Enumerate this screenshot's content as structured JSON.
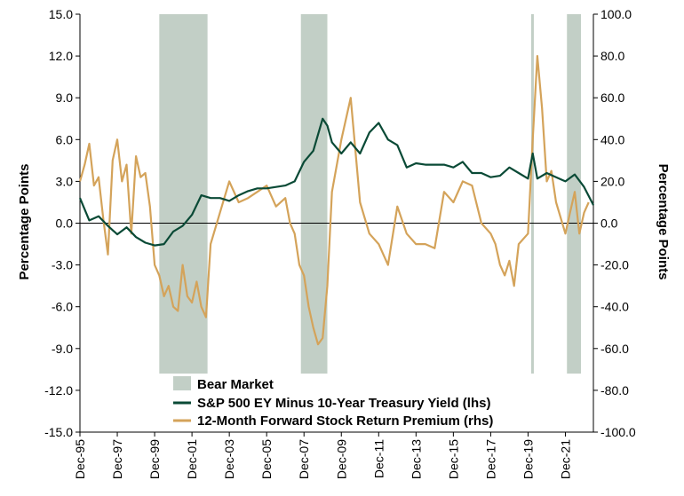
{
  "chart_data": {
    "type": "line",
    "ylabel_left": "Percentage Points",
    "ylabel_right": "Percentage Points",
    "y_left_range": [
      -15,
      15
    ],
    "y_left_ticks": [
      "15.0",
      "12.0",
      "9.0",
      "6.0",
      "3.0",
      "0.0",
      "-3.0",
      "-6.0",
      "-9.0",
      "-12.0",
      "-15.0"
    ],
    "y_right_range": [
      -100,
      100
    ],
    "y_right_ticks": [
      "100.0",
      "80.0",
      "60.0",
      "40.0",
      "20.0",
      "0.0",
      "-20.0",
      "-40.0",
      "-60.0",
      "-80.0",
      "-100.0"
    ],
    "x_range": [
      "1995-12",
      "2023-06"
    ],
    "x_ticks": [
      "Dec-95",
      "Dec-97",
      "Dec-99",
      "Dec-01",
      "Dec-03",
      "Dec-05",
      "Dec-07",
      "Dec-09",
      "Dec-11",
      "Dec-13",
      "Dec-15",
      "Dec-17",
      "Dec-19",
      "Dec-21"
    ],
    "grid": false,
    "legend_position": "bottom-center",
    "bear_markets": [
      {
        "start": "2000-03",
        "end": "2002-10"
      },
      {
        "start": "2007-10",
        "end": "2009-03"
      },
      {
        "start": "2020-02",
        "end": "2020-03"
      },
      {
        "start": "2022-01",
        "end": "2022-10"
      }
    ],
    "legend": {
      "bear": "Bear Market",
      "ey": "S&P 500 EY Minus 10-Year Treasury Yield (lhs)",
      "premium": "12-Month Forward Stock Return Premium (rhs)"
    },
    "colors": {
      "bear": "#c2cfc6",
      "ey": "#0a4a36",
      "premium": "#d4a35a"
    },
    "series": [
      {
        "name": "S&P 500 EY Minus 10-Year Treasury Yield (lhs)",
        "axis": "left",
        "x": [
          "1995-12",
          "1996-06",
          "1996-12",
          "1997-06",
          "1997-12",
          "1998-06",
          "1998-12",
          "1999-06",
          "1999-12",
          "2000-06",
          "2000-12",
          "2001-06",
          "2001-12",
          "2002-06",
          "2002-12",
          "2003-06",
          "2003-12",
          "2004-06",
          "2004-12",
          "2005-06",
          "2005-12",
          "2006-06",
          "2006-12",
          "2007-06",
          "2007-12",
          "2008-06",
          "2008-12",
          "2009-03",
          "2009-06",
          "2009-12",
          "2010-06",
          "2010-12",
          "2011-06",
          "2011-12",
          "2012-06",
          "2012-12",
          "2013-06",
          "2013-12",
          "2014-06",
          "2014-12",
          "2015-06",
          "2015-12",
          "2016-06",
          "2016-12",
          "2017-06",
          "2017-12",
          "2018-06",
          "2018-12",
          "2019-06",
          "2019-12",
          "2020-03",
          "2020-06",
          "2020-12",
          "2021-06",
          "2021-12",
          "2022-06",
          "2022-12",
          "2023-06"
        ],
        "values": [
          1.8,
          0.2,
          0.5,
          -0.2,
          -0.8,
          -0.3,
          -1.0,
          -1.4,
          -1.6,
          -1.5,
          -0.6,
          -0.2,
          0.6,
          2.0,
          1.8,
          1.8,
          1.6,
          2.0,
          2.3,
          2.5,
          2.5,
          2.6,
          2.7,
          3.0,
          4.4,
          5.2,
          7.5,
          7.0,
          5.8,
          5.0,
          5.8,
          5.0,
          6.5,
          7.2,
          6.0,
          5.6,
          4.0,
          4.3,
          4.2,
          4.2,
          4.2,
          4.0,
          4.4,
          3.6,
          3.6,
          3.3,
          3.4,
          4.0,
          3.6,
          3.2,
          5.0,
          3.2,
          3.6,
          3.3,
          3.0,
          3.5,
          2.6,
          1.3
        ]
      },
      {
        "name": "12-Month Forward Stock Return Premium (rhs)",
        "axis": "right",
        "x": [
          "1995-12",
          "1996-03",
          "1996-06",
          "1996-09",
          "1996-12",
          "1997-03",
          "1997-06",
          "1997-09",
          "1997-12",
          "1998-03",
          "1998-06",
          "1998-09",
          "1998-12",
          "1999-03",
          "1999-06",
          "1999-09",
          "1999-12",
          "2000-03",
          "2000-06",
          "2000-09",
          "2000-12",
          "2001-03",
          "2001-06",
          "2001-09",
          "2001-12",
          "2002-03",
          "2002-06",
          "2002-09",
          "2002-12",
          "2003-06",
          "2003-12",
          "2004-06",
          "2004-12",
          "2005-06",
          "2005-12",
          "2006-06",
          "2006-12",
          "2007-03",
          "2007-06",
          "2007-09",
          "2007-12",
          "2008-03",
          "2008-06",
          "2008-09",
          "2008-12",
          "2009-03",
          "2009-06",
          "2009-12",
          "2010-06",
          "2010-12",
          "2011-06",
          "2011-12",
          "2012-06",
          "2012-12",
          "2013-06",
          "2013-12",
          "2014-06",
          "2014-12",
          "2015-06",
          "2015-12",
          "2016-06",
          "2016-12",
          "2017-06",
          "2017-12",
          "2018-03",
          "2018-06",
          "2018-09",
          "2018-12",
          "2019-03",
          "2019-06",
          "2019-12",
          "2020-03",
          "2020-06",
          "2020-09",
          "2020-12",
          "2021-03",
          "2021-06",
          "2021-12",
          "2022-03",
          "2022-06",
          "2022-09",
          "2022-12",
          "2023-03"
        ],
        "values": [
          20,
          28,
          38,
          18,
          22,
          2,
          -15,
          30,
          40,
          20,
          28,
          -5,
          32,
          22,
          24,
          8,
          -20,
          -25,
          -35,
          -30,
          -40,
          -42,
          -20,
          -35,
          -38,
          -28,
          -40,
          -45,
          -10,
          5,
          20,
          10,
          12,
          15,
          18,
          8,
          12,
          0,
          -5,
          -20,
          -25,
          -40,
          -50,
          -58,
          -55,
          -30,
          15,
          40,
          60,
          10,
          -5,
          -10,
          -20,
          8,
          -5,
          -10,
          -10,
          -12,
          15,
          10,
          20,
          18,
          0,
          -5,
          -10,
          -20,
          -25,
          -18,
          -30,
          -10,
          -5,
          40,
          80,
          55,
          20,
          25,
          10,
          -5,
          5,
          15,
          -5,
          5,
          10
        ]
      }
    ]
  }
}
